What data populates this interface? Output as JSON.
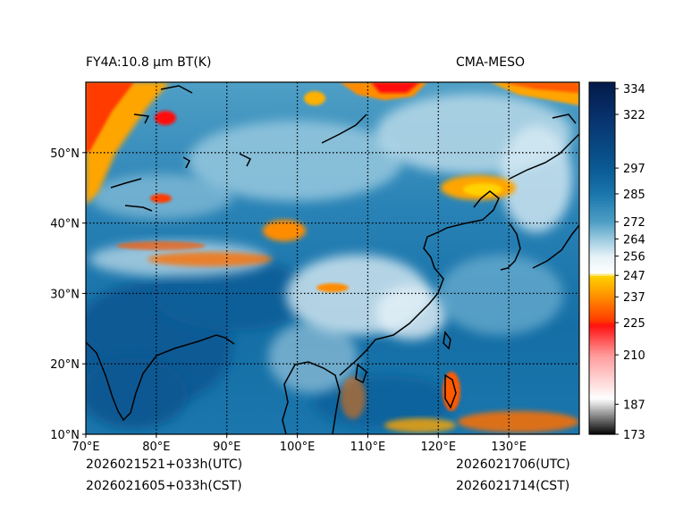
{
  "header": {
    "title_left": "FY4A:10.8 µm BT(K)",
    "title_right": "CMA-MESO"
  },
  "footer": {
    "init_utc": "2026021521+033h(UTC)",
    "init_cst": "2026021605+033h(CST)",
    "valid_utc": "2026021706(UTC)",
    "valid_cst": "2026021714(CST)"
  },
  "chart_data": {
    "type": "heatmap",
    "title": "FY4A:10.8 µm BT(K)",
    "subtitle": "CMA-MESO",
    "variable": "Brightness temperature (K)",
    "x_range": [
      70,
      140
    ],
    "y_range": [
      10,
      60
    ],
    "x_ticks": [
      70,
      80,
      90,
      100,
      110,
      120,
      130
    ],
    "x_tick_labels": [
      "70°E",
      "80°E",
      "90°E",
      "100°E",
      "110°E",
      "120°E",
      "130°E"
    ],
    "y_ticks": [
      10,
      20,
      30,
      40,
      50
    ],
    "y_tick_labels": [
      "10°N",
      "20°N",
      "30°N",
      "40°N",
      "50°N"
    ],
    "grid": true,
    "colorbar": {
      "min": 173,
      "max": 337,
      "ticks": [
        173,
        187,
        210,
        225,
        237,
        247,
        256,
        264,
        272,
        285,
        297,
        322,
        334
      ],
      "tick_labels": [
        "173",
        "187",
        "210",
        "225",
        "237",
        "247",
        "256",
        "264",
        "272",
        "285",
        "297",
        "322",
        "334"
      ],
      "stops": [
        {
          "value": 173,
          "color": "#000000"
        },
        {
          "value": 187,
          "color": "#d8d8d8"
        },
        {
          "value": 190,
          "color": "#ffffff"
        },
        {
          "value": 210,
          "color": "#ff9a9a"
        },
        {
          "value": 224,
          "color": "#ff1010"
        },
        {
          "value": 226,
          "color": "#ff3a00"
        },
        {
          "value": 237,
          "color": "#ff8c00"
        },
        {
          "value": 247,
          "color": "#ffd200"
        },
        {
          "value": 248,
          "color": "#ffffff"
        },
        {
          "value": 256,
          "color": "#e6f2f8"
        },
        {
          "value": 264,
          "color": "#9ccbe0"
        },
        {
          "value": 272,
          "color": "#4f9fc6"
        },
        {
          "value": 285,
          "color": "#1a76ac"
        },
        {
          "value": 297,
          "color": "#0a5a95"
        },
        {
          "value": 322,
          "color": "#08306b"
        },
        {
          "value": 337,
          "color": "#031a4a"
        }
      ]
    }
  }
}
